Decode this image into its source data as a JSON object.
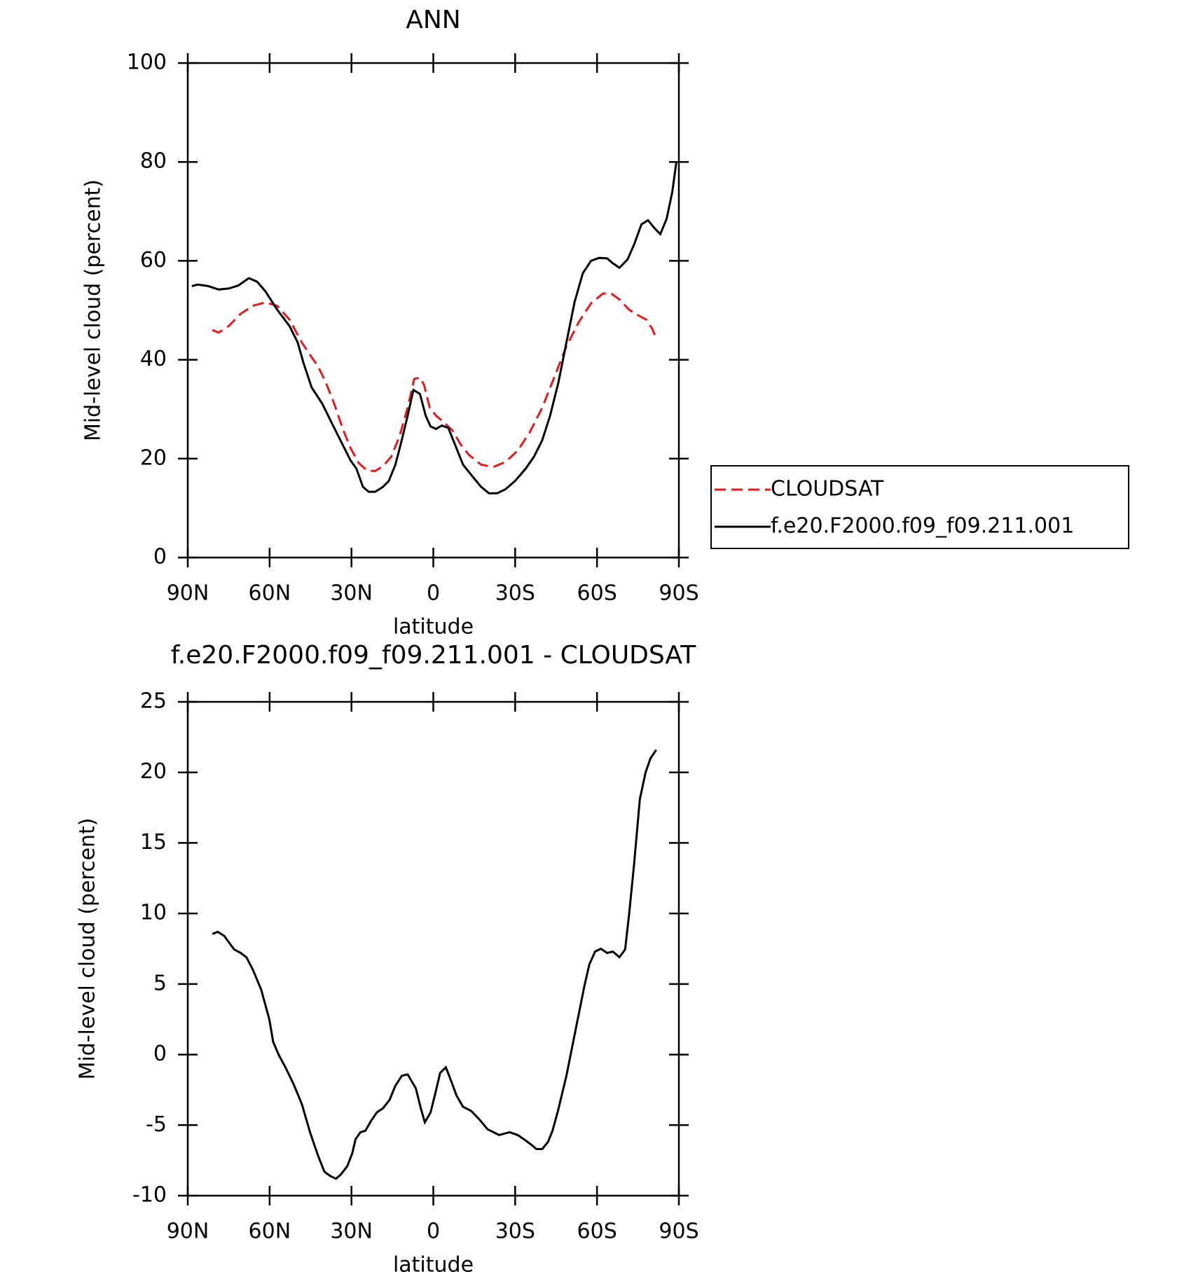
{
  "chart_data": [
    {
      "type": "line",
      "title": "ANN",
      "x_label": "latitude",
      "y_label": "Mid-level cloud (percent)",
      "xlim": [
        90,
        -90
      ],
      "xticks": [
        {
          "value": 90,
          "label": "90N"
        },
        {
          "value": 60,
          "label": "60N"
        },
        {
          "value": 30,
          "label": "30N"
        },
        0,
        {
          "value": -30,
          "label": "30S"
        },
        {
          "value": -60,
          "label": "60S"
        },
        {
          "value": -90,
          "label": "90S"
        }
      ],
      "ylim": [
        0,
        100
      ],
      "yticks": [
        0,
        20,
        40,
        60,
        80,
        100
      ],
      "legend": "right",
      "series": [
        {
          "name": "CLOUDSAT",
          "color": "#e31a1c",
          "dash": true,
          "x": [
            81,
            78.7,
            75,
            70.6,
            66.1,
            61.6,
            57.2,
            52.7,
            48.2,
            45.2,
            42.2,
            39.3,
            36.3,
            33.3,
            30.3,
            27.3,
            24.3,
            21.3,
            18.4,
            15.4,
            12.4,
            9.4,
            7,
            4.9,
            3.4,
            1.3,
            -1,
            -4,
            -7,
            -10,
            -13,
            -17.5,
            -21.9,
            -26.4,
            -30.9,
            -35.4,
            -39.9,
            -44.3,
            -48.8,
            -53.3,
            -57.8,
            -62.2,
            -65.2,
            -68.2,
            -71.8,
            -75.7,
            -78.1,
            -80.2,
            -81.7
          ],
          "values": [
            46,
            45.5,
            46.8,
            49.3,
            50.9,
            51.6,
            50.9,
            48.1,
            43.5,
            41,
            38.6,
            35.3,
            31.1,
            26.2,
            22.1,
            19.1,
            17.6,
            17.5,
            18.5,
            20.4,
            24.5,
            30.3,
            36.1,
            36.4,
            34.9,
            30.3,
            28.7,
            27.3,
            25.7,
            22.9,
            20.8,
            18.8,
            18.3,
            19.3,
            21.6,
            25.4,
            30.3,
            36.4,
            42.7,
            47.6,
            51.4,
            53.4,
            53.4,
            52.2,
            50.1,
            48.8,
            48.1,
            46.3,
            44.3
          ]
        },
        {
          "name": "f.e20.F2000.f09_f09.211.001",
          "color": "#000000",
          "dash": false,
          "x": [
            88.5,
            86.4,
            82.5,
            78.7,
            75,
            71.5,
            67.6,
            64.6,
            61.6,
            57.2,
            52.7,
            49.7,
            47.6,
            44.6,
            40.7,
            36.3,
            33.3,
            30.3,
            28.2,
            25.8,
            23.7,
            21.3,
            18.4,
            16.3,
            13.9,
            11.8,
            9.4,
            7.3,
            4.9,
            2.8,
            1,
            -1,
            -3.1,
            -5.5,
            -8.5,
            -10.9,
            -14.5,
            -17.5,
            -20.4,
            -23.4,
            -26.4,
            -30,
            -33.9,
            -36.9,
            -39.9,
            -42.8,
            -45.8,
            -48.8,
            -51.8,
            -54.8,
            -57.8,
            -60.8,
            -63.7,
            -65.8,
            -68.2,
            -71.2,
            -73.6,
            -76.3,
            -78.7,
            -81.1,
            -83.2,
            -85.5,
            -87.6,
            -89.1
          ],
          "values": [
            54.9,
            55.2,
            54.9,
            54.2,
            54.4,
            55,
            56.5,
            55.8,
            53.9,
            50.1,
            46.8,
            43.5,
            39.4,
            34.4,
            31.1,
            26.2,
            22.9,
            19.6,
            18,
            14.3,
            13.3,
            13.3,
            14.3,
            15.5,
            18.8,
            23.2,
            28.7,
            33.9,
            33.1,
            28.7,
            26.5,
            26,
            26.7,
            26.2,
            22.1,
            18.8,
            16.3,
            14.3,
            13,
            13,
            13.8,
            15.5,
            18,
            20.4,
            23.7,
            28.7,
            35.3,
            43.5,
            51.7,
            57.5,
            60,
            60.6,
            60.5,
            59.5,
            58.6,
            60.3,
            63.3,
            67.4,
            68.2,
            66.6,
            65.4,
            68.5,
            74,
            80.1
          ]
        }
      ]
    },
    {
      "type": "line",
      "title": "f.e20.F2000.f09_f09.211.001 - CLOUDSAT",
      "x_label": "latitude",
      "y_label": "Mid-level cloud (percent)",
      "xlim": [
        90,
        -90
      ],
      "xticks": [
        {
          "value": 90,
          "label": "90N"
        },
        {
          "value": 60,
          "label": "60N"
        },
        {
          "value": 30,
          "label": "30N"
        },
        0,
        {
          "value": -30,
          "label": "30S"
        },
        {
          "value": -60,
          "label": "60S"
        },
        {
          "value": -90,
          "label": "90S"
        }
      ],
      "ylim": [
        -10,
        25
      ],
      "yticks": [
        -10,
        -5,
        0,
        5,
        10,
        15,
        20,
        25
      ],
      "series": [
        {
          "color": "#000000",
          "dash": false,
          "x": [
            81,
            79,
            76.6,
            73,
            70.6,
            68.5,
            66.1,
            63.1,
            60.1,
            58.7,
            56.6,
            54.2,
            51.2,
            48.2,
            45.2,
            42.2,
            39.9,
            37.8,
            35.7,
            33.9,
            31.5,
            29.7,
            28.5,
            26.7,
            24.9,
            22.8,
            20.7,
            18.4,
            16,
            13.9,
            11.5,
            9.4,
            6.4,
            4.6,
            3.1,
            1,
            -0.8,
            -2.5,
            -4.6,
            -6.4,
            -8.5,
            -10.9,
            -13.9,
            -16.9,
            -19.9,
            -24.1,
            -28,
            -30.9,
            -33.9,
            -36,
            -37.8,
            -39.9,
            -42,
            -43.7,
            -45.8,
            -48.8,
            -52.4,
            -55.4,
            -57.2,
            -59.3,
            -61.4,
            -63.7,
            -65.8,
            -68.2,
            -70.3,
            -71.8,
            -73.6,
            -75.7,
            -77.8,
            -79.6,
            -81.7
          ],
          "values": [
            8.55,
            8.7,
            8.4,
            7.45,
            7.2,
            6.9,
            6,
            4.6,
            2.5,
            0.9,
            -0.05,
            -0.9,
            -2.1,
            -3.5,
            -5.5,
            -7.2,
            -8.3,
            -8.6,
            -8.8,
            -8.5,
            -7.9,
            -7,
            -6,
            -5.5,
            -5.4,
            -4.7,
            -4.1,
            -3.8,
            -3.2,
            -2.2,
            -1.5,
            -1.4,
            -2.4,
            -3.8,
            -4.8,
            -4.1,
            -2.7,
            -1.3,
            -0.9,
            -1.8,
            -2.9,
            -3.7,
            -4,
            -4.6,
            -5.3,
            -5.7,
            -5.5,
            -5.7,
            -6.1,
            -6.4,
            -6.7,
            -6.7,
            -6.2,
            -5.4,
            -3.9,
            -1.5,
            2,
            4.9,
            6.4,
            7.3,
            7.5,
            7.2,
            7.3,
            6.9,
            7.45,
            10,
            13.5,
            18.1,
            20,
            21,
            21.6
          ]
        }
      ]
    }
  ]
}
